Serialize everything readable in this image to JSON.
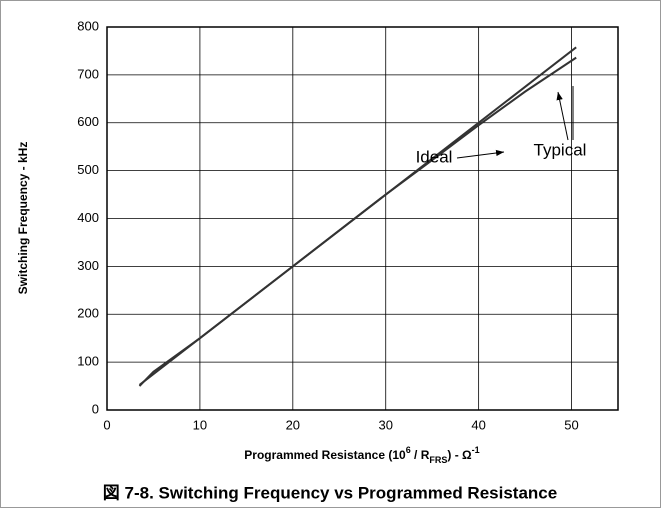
{
  "chart_data": {
    "type": "line",
    "title": "図 7-8. Switching Frequency vs Programmed Resistance",
    "y_label": "Switching Frequency - kHz",
    "x_label": [
      "Programmed Resistance  (10",
      "6",
      " / R",
      "FRS",
      ") - Ω",
      "-1"
    ],
    "xlim": [
      0,
      55
    ],
    "xticks": [
      0,
      10,
      20,
      30,
      40,
      50
    ],
    "ylim": [
      0,
      800
    ],
    "yticks": [
      0,
      100,
      200,
      300,
      400,
      500,
      600,
      700,
      800
    ],
    "grid": true,
    "series": [
      {
        "name": "Ideal",
        "color": "#333333",
        "x": [
          3.5,
          50.5
        ],
        "values": [
          52.5,
          757.5
        ]
      },
      {
        "name": "Typical",
        "color": "#333333",
        "x": [
          3.5,
          5,
          10,
          20,
          30,
          35,
          40,
          45,
          50.5
        ],
        "values": [
          50,
          80,
          150,
          300,
          450,
          522,
          595,
          665,
          736
        ]
      }
    ]
  }
}
